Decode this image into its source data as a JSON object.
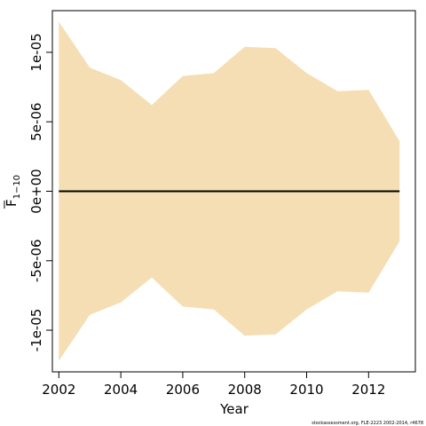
{
  "chart_data": {
    "type": "area",
    "xlabel": "Year",
    "ylabel": "F",
    "ylabel_subscript": "1−10",
    "x": [
      2002,
      2003,
      2004,
      2005,
      2006,
      2007,
      2008,
      2009,
      2010,
      2011,
      2012,
      2013
    ],
    "upper": [
      1.22e-05,
      8.9e-06,
      8e-06,
      6.2e-06,
      8.3e-06,
      8.5e-06,
      1.04e-05,
      1.03e-05,
      8.5e-06,
      7.2e-06,
      7.3e-06,
      3.6e-06
    ],
    "lower": [
      -1.22e-05,
      -8.9e-06,
      -8e-06,
      -6.2e-06,
      -8.3e-06,
      -8.5e-06,
      -1.04e-05,
      -1.03e-05,
      -8.5e-06,
      -7.2e-06,
      -7.3e-06,
      -3.6e-06
    ],
    "mean": [
      0,
      0,
      0,
      0,
      0,
      0,
      0,
      0,
      0,
      0,
      0,
      0
    ],
    "xlim": [
      2001.79,
      2013.51
    ],
    "ylim": [
      -1.3e-05,
      1.3e-05
    ],
    "xticks": [
      2002,
      2004,
      2006,
      2008,
      2010,
      2012
    ],
    "xtick_labels": [
      "2002",
      "2004",
      "2006",
      "2008",
      "2010",
      "2012"
    ],
    "yticks": [
      -1e-05,
      -5e-06,
      0,
      5e-06,
      1e-05
    ],
    "ytick_labels": [
      "-1e-05",
      "-5e-06",
      "0e+00",
      "5e-06",
      "1e-05"
    ],
    "band_color": "#f5deb3",
    "line_color": "#000000",
    "caption": "stockassessment.org, FLE-2223  2002-2014, r4678"
  }
}
